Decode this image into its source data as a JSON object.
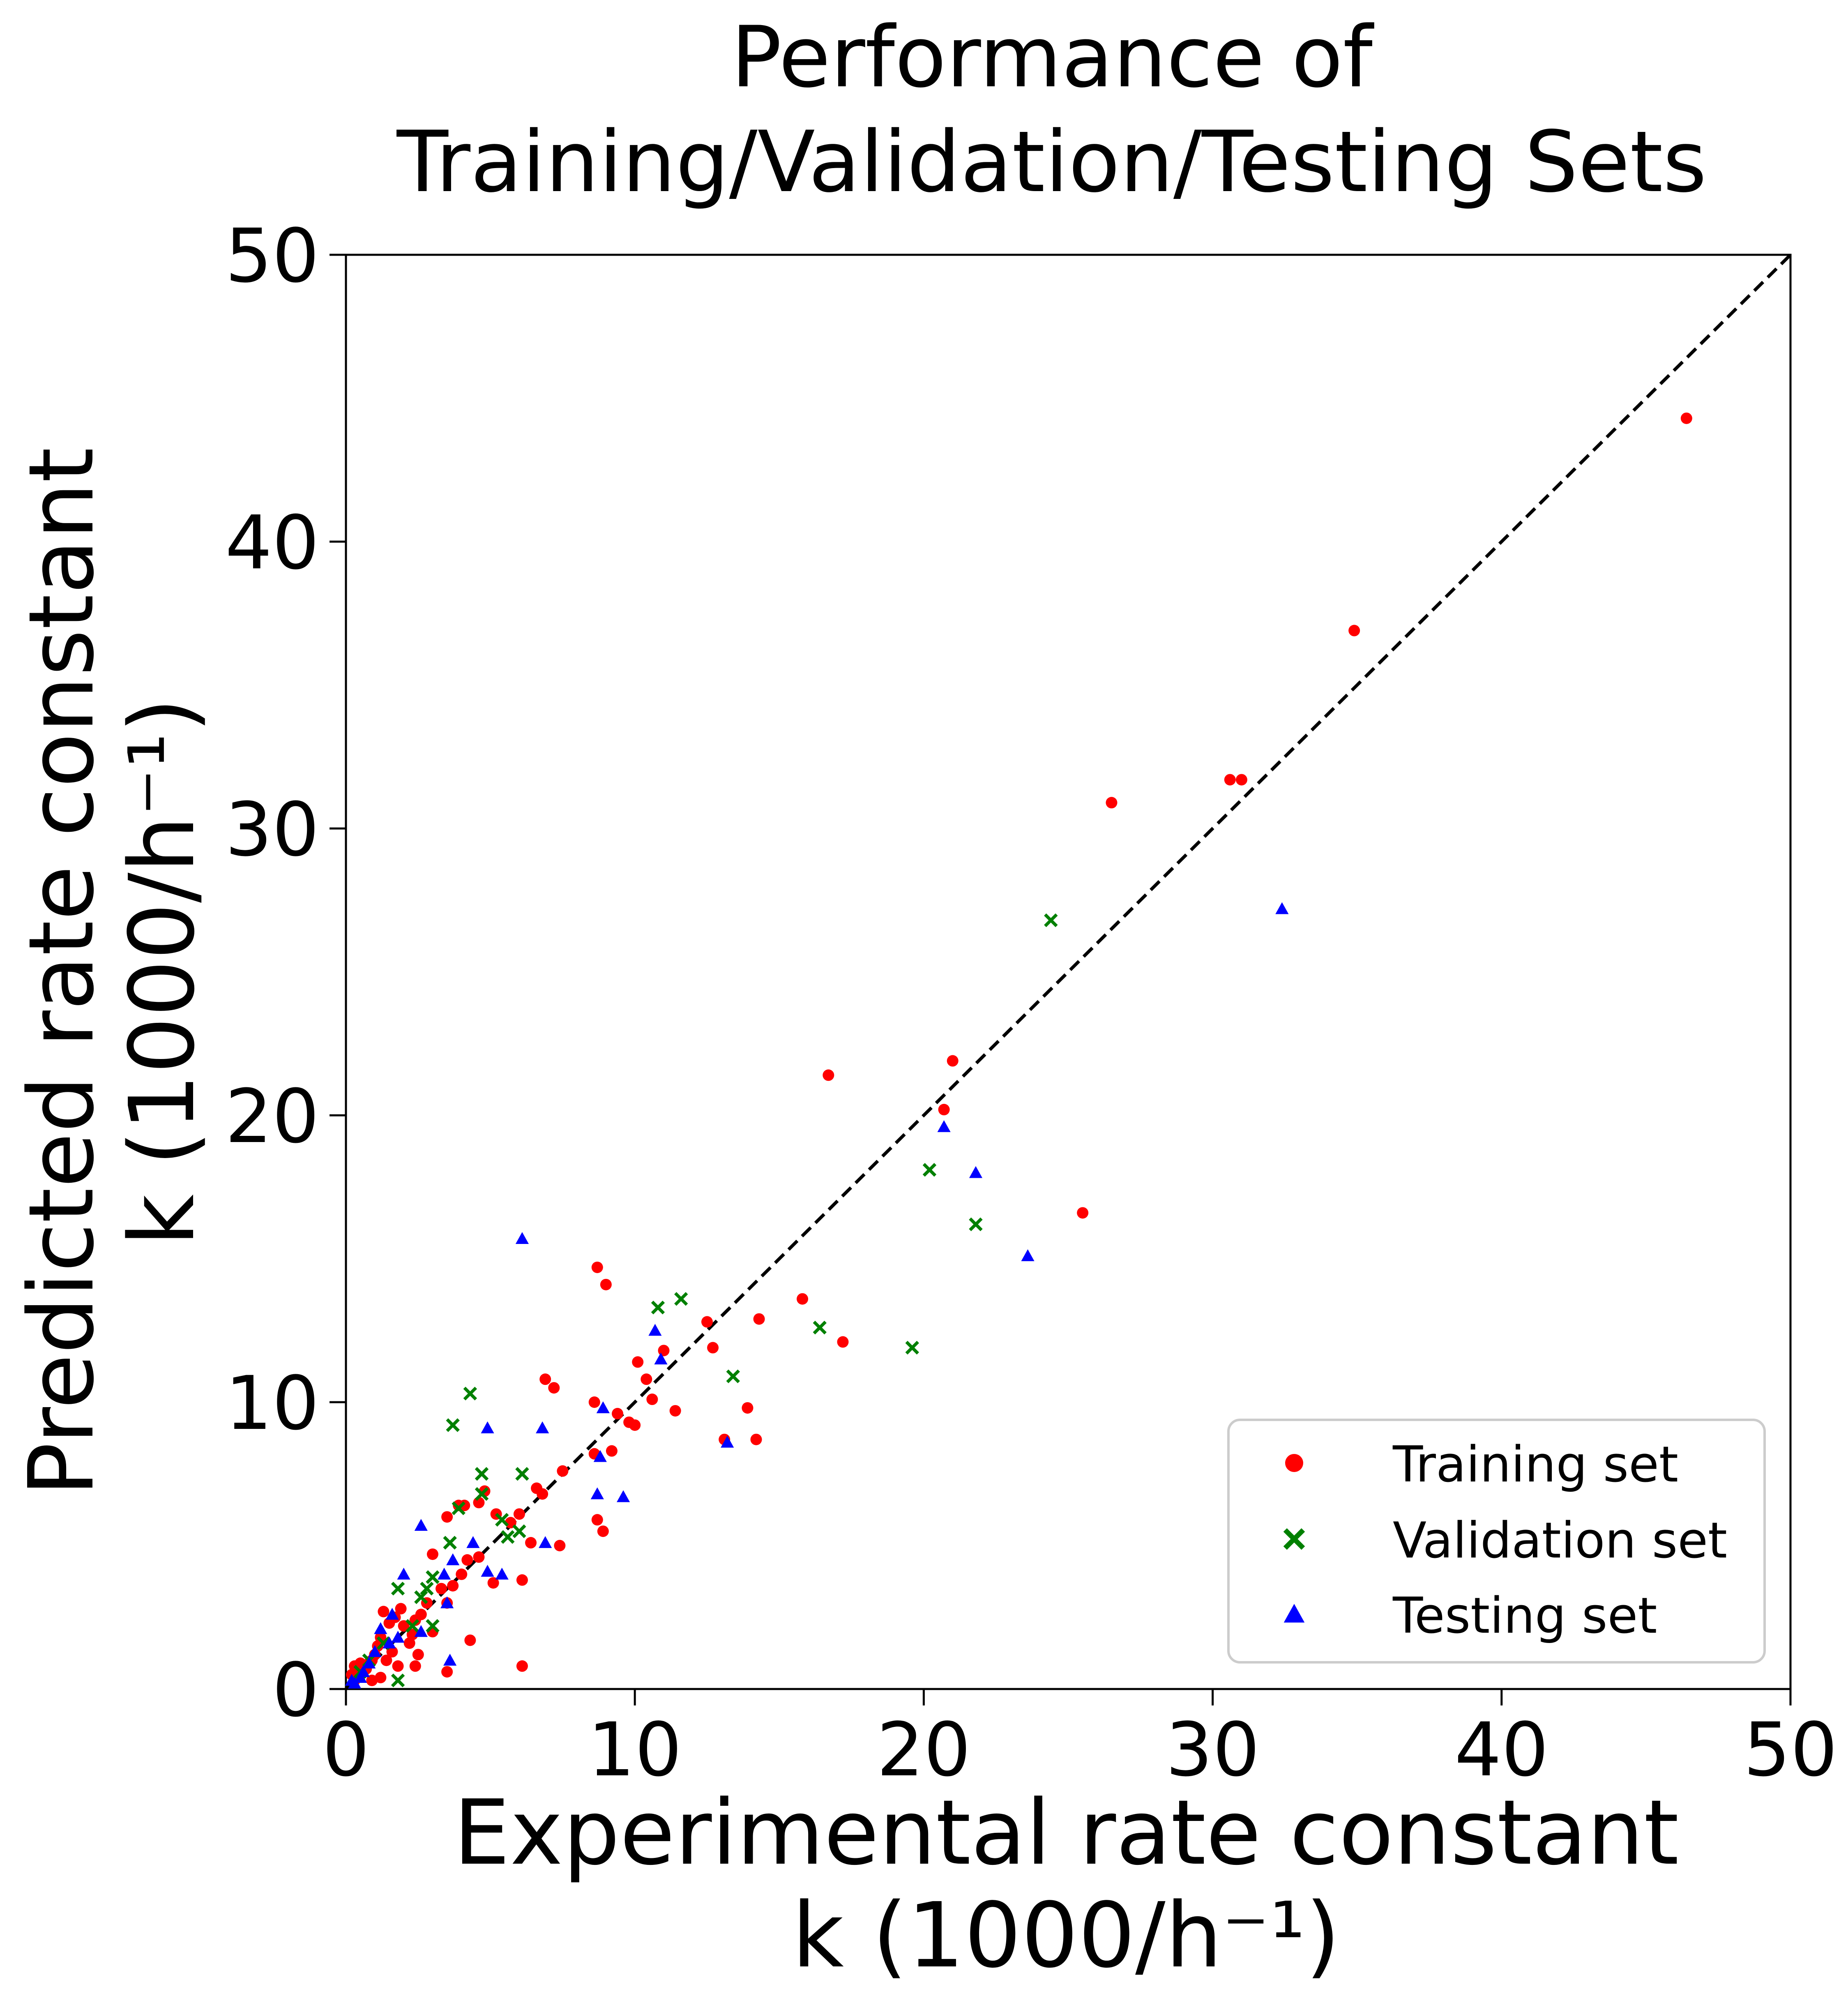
{
  "chart_data": {
    "type": "scatter",
    "title": [
      "Performance of",
      "Training/Validation/Testing Sets"
    ],
    "xlabel": [
      "Experimental rate constant",
      "k (1000/h⁻¹)"
    ],
    "ylabel": [
      "Predicted rate constant",
      "k (1000/h⁻¹)"
    ],
    "xlim": [
      0,
      50
    ],
    "ylim": [
      0,
      50
    ],
    "xticks": [
      "0",
      "10",
      "20",
      "30",
      "40",
      "50"
    ],
    "yticks": [
      "0",
      "10",
      "20",
      "30",
      "40",
      "50"
    ],
    "grid": false,
    "legend_position": "lower-right",
    "reference_line": {
      "style": "dashed",
      "color": "#000000",
      "from": [
        0,
        0
      ],
      "to": [
        50,
        50
      ]
    },
    "series": [
      {
        "name": "Training set",
        "marker": "circle",
        "color": "#ff0000",
        "points": [
          [
            46.4,
            44.3
          ],
          [
            34.9,
            36.9
          ],
          [
            30.6,
            31.7
          ],
          [
            31.0,
            31.7
          ],
          [
            26.5,
            30.9
          ],
          [
            21.0,
            21.9
          ],
          [
            20.7,
            20.2
          ],
          [
            16.7,
            21.4
          ],
          [
            25.5,
            16.6
          ],
          [
            15.8,
            13.6
          ],
          [
            17.2,
            12.1
          ],
          [
            14.3,
            12.9
          ],
          [
            12.5,
            12.8
          ],
          [
            12.7,
            11.9
          ],
          [
            11.0,
            11.8
          ],
          [
            10.1,
            11.4
          ],
          [
            10.4,
            10.8
          ],
          [
            11.4,
            9.7
          ],
          [
            10.6,
            10.1
          ],
          [
            13.9,
            9.8
          ],
          [
            13.1,
            8.7
          ],
          [
            14.2,
            8.7
          ],
          [
            8.7,
            14.7
          ],
          [
            9.0,
            14.1
          ],
          [
            6.9,
            10.8
          ],
          [
            7.2,
            10.5
          ],
          [
            8.6,
            10.0
          ],
          [
            9.4,
            9.6
          ],
          [
            9.8,
            9.3
          ],
          [
            10.0,
            9.2
          ],
          [
            9.2,
            8.3
          ],
          [
            8.6,
            8.2
          ],
          [
            8.7,
            5.9
          ],
          [
            8.9,
            5.5
          ],
          [
            7.5,
            7.6
          ],
          [
            6.6,
            7.0
          ],
          [
            6.8,
            6.8
          ],
          [
            6.0,
            6.1
          ],
          [
            5.7,
            5.8
          ],
          [
            5.2,
            6.1
          ],
          [
            4.8,
            6.9
          ],
          [
            4.6,
            6.5
          ],
          [
            4.1,
            6.4
          ],
          [
            3.9,
            6.4
          ],
          [
            3.5,
            6.0
          ],
          [
            6.4,
            5.1
          ],
          [
            7.4,
            5.0
          ],
          [
            5.1,
            3.7
          ],
          [
            6.1,
            3.8
          ],
          [
            6.1,
            0.8
          ],
          [
            3.5,
            0.6
          ],
          [
            4.3,
            1.7
          ],
          [
            4.6,
            4.6
          ],
          [
            4.2,
            4.5
          ],
          [
            4.0,
            4.0
          ],
          [
            3.7,
            3.6
          ],
          [
            3.5,
            3.0
          ],
          [
            3.3,
            3.5
          ],
          [
            3.0,
            4.7
          ],
          [
            2.8,
            3.0
          ],
          [
            2.6,
            2.6
          ],
          [
            2.4,
            2.4
          ],
          [
            2.3,
            1.9
          ],
          [
            2.2,
            1.6
          ],
          [
            2.0,
            2.2
          ],
          [
            1.9,
            2.8
          ],
          [
            1.7,
            2.5
          ],
          [
            1.5,
            2.3
          ],
          [
            1.3,
            2.7
          ],
          [
            1.2,
            1.8
          ],
          [
            1.1,
            1.5
          ],
          [
            1.0,
            1.2
          ],
          [
            0.9,
            1.0
          ],
          [
            0.8,
            0.9
          ],
          [
            0.7,
            0.7
          ],
          [
            0.6,
            0.6
          ],
          [
            0.5,
            0.5
          ],
          [
            0.4,
            0.4
          ],
          [
            0.3,
            0.3
          ],
          [
            0.2,
            0.5
          ],
          [
            1.6,
            1.3
          ],
          [
            2.5,
            1.2
          ],
          [
            2.4,
            0.8
          ],
          [
            1.8,
            0.8
          ],
          [
            1.2,
            0.4
          ],
          [
            0.9,
            0.3
          ],
          [
            3.0,
            2.0
          ],
          [
            1.4,
            1.0
          ],
          [
            0.5,
            0.9
          ],
          [
            0.3,
            0.8
          ]
        ]
      },
      {
        "name": "Validation set",
        "marker": "x",
        "color": "#008000",
        "points": [
          [
            24.4,
            26.8
          ],
          [
            20.2,
            18.1
          ],
          [
            21.8,
            16.2
          ],
          [
            19.6,
            11.9
          ],
          [
            16.4,
            12.6
          ],
          [
            13.4,
            10.9
          ],
          [
            11.6,
            13.6
          ],
          [
            10.8,
            13.3
          ],
          [
            4.3,
            10.3
          ],
          [
            3.7,
            9.2
          ],
          [
            4.7,
            7.5
          ],
          [
            6.1,
            7.5
          ],
          [
            4.7,
            6.8
          ],
          [
            3.9,
            6.3
          ],
          [
            5.4,
            5.9
          ],
          [
            6.0,
            5.5
          ],
          [
            5.6,
            5.3
          ],
          [
            3.6,
            5.1
          ],
          [
            3.0,
            3.9
          ],
          [
            2.6,
            3.2
          ],
          [
            2.8,
            3.5
          ],
          [
            1.8,
            3.5
          ],
          [
            2.3,
            2.2
          ],
          [
            3.0,
            2.2
          ],
          [
            1.8,
            0.3
          ],
          [
            1.3,
            1.6
          ],
          [
            0.8,
            1.0
          ],
          [
            0.5,
            0.6
          ]
        ]
      },
      {
        "name": "Testing set",
        "marker": "triangle",
        "color": "#0000ff",
        "points": [
          [
            32.4,
            27.2
          ],
          [
            21.8,
            18.0
          ],
          [
            20.7,
            19.6
          ],
          [
            23.6,
            15.1
          ],
          [
            6.1,
            15.7
          ],
          [
            10.7,
            12.5
          ],
          [
            10.9,
            11.5
          ],
          [
            13.2,
            8.6
          ],
          [
            8.9,
            9.8
          ],
          [
            8.8,
            8.1
          ],
          [
            8.7,
            6.8
          ],
          [
            9.6,
            6.7
          ],
          [
            4.9,
            9.1
          ],
          [
            6.8,
            9.1
          ],
          [
            6.9,
            5.1
          ],
          [
            5.4,
            4.0
          ],
          [
            4.9,
            4.1
          ],
          [
            4.4,
            5.1
          ],
          [
            3.7,
            4.5
          ],
          [
            3.4,
            4.0
          ],
          [
            2.6,
            5.7
          ],
          [
            2.0,
            4.0
          ],
          [
            3.5,
            3.0
          ],
          [
            3.6,
            1.0
          ],
          [
            2.6,
            2.0
          ],
          [
            1.8,
            1.8
          ],
          [
            1.5,
            1.6
          ],
          [
            1.2,
            2.1
          ],
          [
            1.0,
            1.3
          ],
          [
            0.8,
            0.9
          ],
          [
            0.6,
            0.6
          ],
          [
            0.5,
            0.4
          ],
          [
            0.3,
            0.2
          ],
          [
            0.2,
            0.3
          ],
          [
            1.6,
            2.6
          ]
        ]
      }
    ]
  }
}
